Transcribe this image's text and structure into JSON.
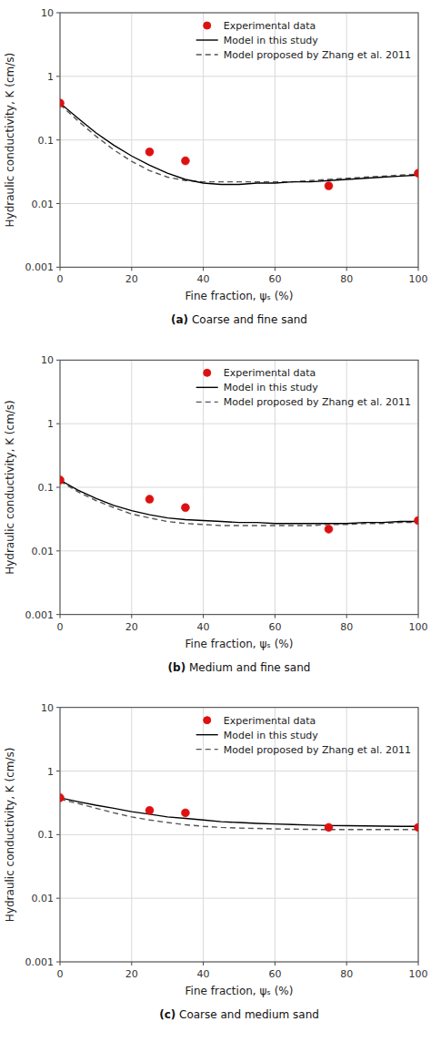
{
  "chart_data": [
    {
      "type": "line",
      "title": "(a) Coarse and fine sand",
      "x_label": "Fine fraction, ψₛ (%)",
      "y_label": "Hydraulic conductivity, K (cm/s)",
      "log": "y",
      "grid": true,
      "legend": "upper right",
      "xlim": [
        0,
        100
      ],
      "xticks": [
        0,
        20,
        40,
        60,
        80,
        100
      ],
      "ylim": [
        0.001,
        10
      ],
      "yticks": [
        0.001,
        0.01,
        0.1,
        1,
        10
      ],
      "series": [
        {
          "name": "Experimental data",
          "type": "scatter",
          "marker": "circle",
          "color": "#dd1111",
          "x": [
            0,
            25,
            35,
            75,
            100
          ],
          "values": [
            0.38,
            0.065,
            0.047,
            0.019,
            0.03
          ]
        },
        {
          "name": "Model in this study",
          "type": "line",
          "line_style": "solid",
          "color": "#000000",
          "x": [
            0,
            5,
            10,
            15,
            20,
            25,
            30,
            35,
            40,
            45,
            50,
            55,
            60,
            65,
            70,
            75,
            80,
            85,
            90,
            95,
            100
          ],
          "values": [
            0.38,
            0.22,
            0.13,
            0.083,
            0.056,
            0.04,
            0.03,
            0.024,
            0.021,
            0.02,
            0.02,
            0.021,
            0.021,
            0.022,
            0.022,
            0.023,
            0.024,
            0.025,
            0.026,
            0.027,
            0.028
          ]
        },
        {
          "name": "Model proposed by Zhang et al. 2011",
          "type": "line",
          "line_style": "dashed",
          "color": "#555555",
          "x": [
            0,
            5,
            10,
            15,
            20,
            25,
            30,
            35,
            40,
            45,
            50,
            55,
            60,
            65,
            70,
            75,
            80,
            85,
            90,
            95,
            100
          ],
          "values": [
            0.36,
            0.2,
            0.115,
            0.07,
            0.046,
            0.033,
            0.026,
            0.023,
            0.022,
            0.022,
            0.022,
            0.022,
            0.022,
            0.022,
            0.023,
            0.024,
            0.025,
            0.026,
            0.027,
            0.028,
            0.029
          ]
        }
      ]
    },
    {
      "type": "line",
      "title": "(b) Medium and fine sand",
      "x_label": "Fine fraction, ψₛ (%)",
      "y_label": "Hydraulic conductivity, K (cm/s)",
      "log": "y",
      "grid": true,
      "legend": "upper right",
      "xlim": [
        0,
        100
      ],
      "xticks": [
        0,
        20,
        40,
        60,
        80,
        100
      ],
      "ylim": [
        0.001,
        10
      ],
      "yticks": [
        0.001,
        0.01,
        0.1,
        1,
        10
      ],
      "series": [
        {
          "name": "Experimental data",
          "type": "scatter",
          "marker": "circle",
          "color": "#dd1111",
          "x": [
            0,
            25,
            35,
            75,
            100
          ],
          "values": [
            0.13,
            0.065,
            0.048,
            0.022,
            0.03
          ]
        },
        {
          "name": "Model in this study",
          "type": "line",
          "line_style": "solid",
          "color": "#000000",
          "x": [
            0,
            5,
            10,
            15,
            20,
            25,
            30,
            35,
            40,
            45,
            50,
            55,
            60,
            65,
            70,
            75,
            80,
            85,
            90,
            95,
            100
          ],
          "values": [
            0.13,
            0.09,
            0.067,
            0.052,
            0.043,
            0.037,
            0.033,
            0.031,
            0.03,
            0.029,
            0.028,
            0.028,
            0.027,
            0.027,
            0.027,
            0.027,
            0.027,
            0.028,
            0.028,
            0.029,
            0.029
          ]
        },
        {
          "name": "Model proposed by Zhang et al. 2011",
          "type": "line",
          "line_style": "dashed",
          "color": "#555555",
          "x": [
            0,
            5,
            10,
            15,
            20,
            25,
            30,
            35,
            40,
            45,
            50,
            55,
            60,
            65,
            70,
            75,
            80,
            85,
            90,
            95,
            100
          ],
          "values": [
            0.125,
            0.085,
            0.062,
            0.048,
            0.038,
            0.033,
            0.029,
            0.027,
            0.026,
            0.025,
            0.025,
            0.025,
            0.025,
            0.025,
            0.025,
            0.026,
            0.026,
            0.027,
            0.027,
            0.028,
            0.028
          ]
        }
      ]
    },
    {
      "type": "line",
      "title": "(c) Coarse and medium sand",
      "x_label": "Fine fraction, ψₛ (%)",
      "y_label": "Hydraulic conductivity, K (cm/s)",
      "log": "y",
      "grid": true,
      "legend": "upper right",
      "xlim": [
        0,
        100
      ],
      "xticks": [
        0,
        20,
        40,
        60,
        80,
        100
      ],
      "ylim": [
        0.001,
        10
      ],
      "yticks": [
        0.001,
        0.01,
        0.1,
        1,
        10
      ],
      "series": [
        {
          "name": "Experimental data",
          "type": "scatter",
          "marker": "circle",
          "color": "#dd1111",
          "x": [
            0,
            25,
            35,
            75,
            100
          ],
          "values": [
            0.38,
            0.24,
            0.22,
            0.13,
            0.13
          ]
        },
        {
          "name": "Model in this study",
          "type": "line",
          "line_style": "solid",
          "color": "#000000",
          "x": [
            0,
            5,
            10,
            15,
            20,
            25,
            30,
            35,
            40,
            45,
            50,
            55,
            60,
            65,
            70,
            75,
            80,
            85,
            90,
            95,
            100
          ],
          "values": [
            0.38,
            0.33,
            0.29,
            0.26,
            0.23,
            0.21,
            0.19,
            0.18,
            0.17,
            0.16,
            0.155,
            0.15,
            0.147,
            0.144,
            0.141,
            0.139,
            0.138,
            0.137,
            0.136,
            0.135,
            0.135
          ]
        },
        {
          "name": "Model proposed by Zhang et al. 2011",
          "type": "line",
          "line_style": "dashed",
          "color": "#555555",
          "x": [
            0,
            5,
            10,
            15,
            20,
            25,
            30,
            35,
            40,
            45,
            50,
            55,
            60,
            65,
            70,
            75,
            80,
            85,
            90,
            95,
            100
          ],
          "values": [
            0.36,
            0.31,
            0.26,
            0.22,
            0.19,
            0.17,
            0.155,
            0.143,
            0.135,
            0.13,
            0.127,
            0.125,
            0.123,
            0.122,
            0.121,
            0.12,
            0.12,
            0.12,
            0.12,
            0.12,
            0.12
          ]
        }
      ]
    }
  ]
}
